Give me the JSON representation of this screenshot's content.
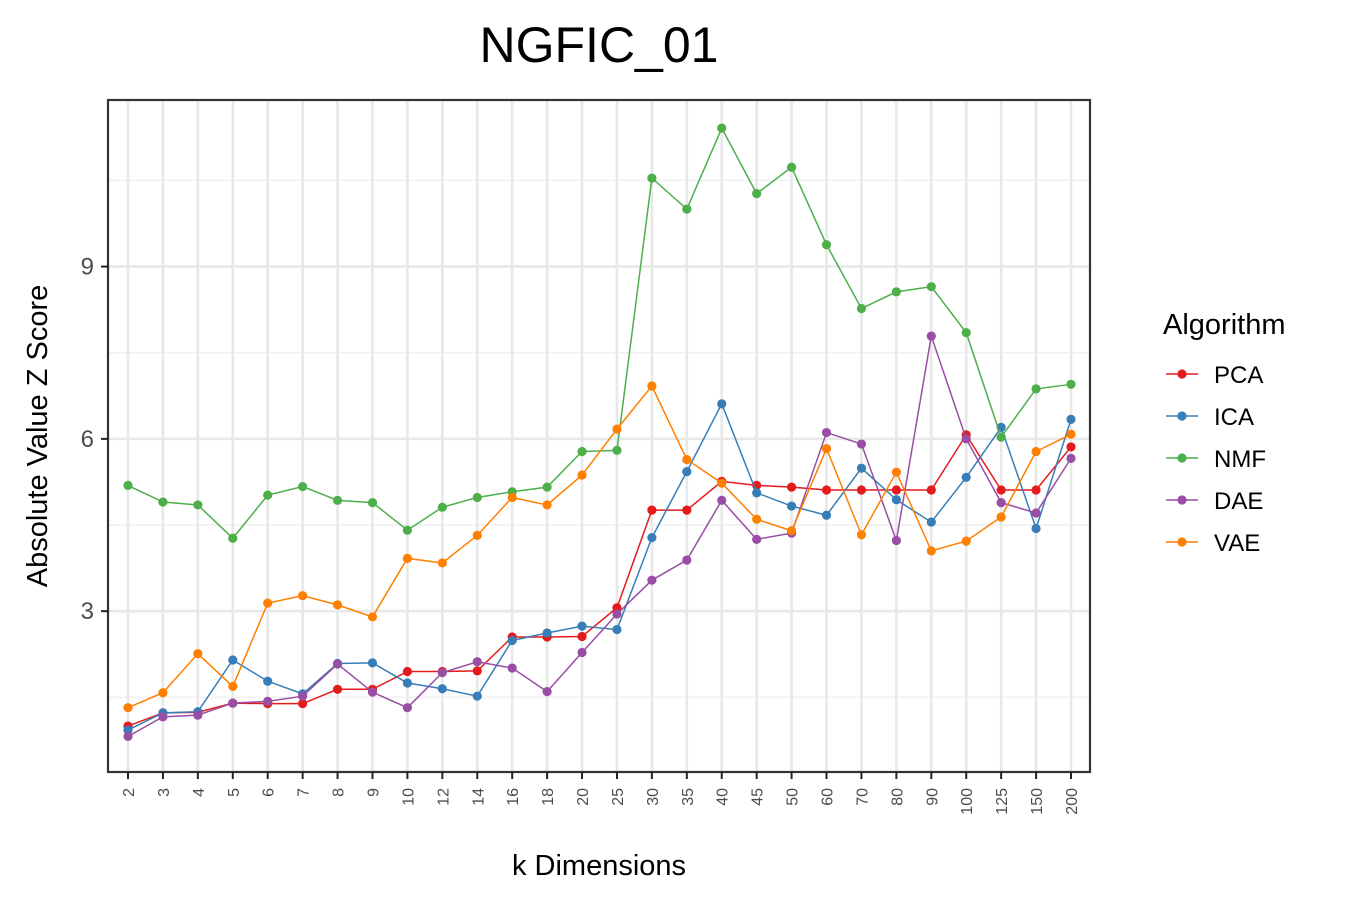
{
  "chart_data": {
    "type": "line",
    "title": "NGFIC_01",
    "xlabel": "k Dimensions",
    "ylabel": "Absolute Value Z Score",
    "categories": [
      "2",
      "3",
      "4",
      "5",
      "6",
      "7",
      "8",
      "9",
      "10",
      "12",
      "14",
      "16",
      "18",
      "20",
      "25",
      "30",
      "35",
      "40",
      "45",
      "50",
      "60",
      "70",
      "80",
      "90",
      "100",
      "125",
      "150",
      "200"
    ],
    "ylim": [
      0.2,
      11.9
    ],
    "yticks": [
      3,
      6,
      9
    ],
    "grid": true,
    "legend_title": "Algorithm",
    "legend_position": "right",
    "series": [
      {
        "name": "PCA",
        "color": "#e41a1c",
        "values": [
          1.0,
          1.23,
          1.24,
          1.4,
          1.39,
          1.39,
          1.64,
          1.64,
          1.95,
          1.95,
          1.96,
          2.55,
          2.55,
          2.56,
          3.06,
          4.76,
          4.76,
          5.26,
          5.19,
          5.16,
          5.11,
          5.11,
          5.11,
          5.11,
          6.07,
          5.11,
          5.11,
          5.86
        ]
      },
      {
        "name": "ICA",
        "color": "#377eb8",
        "values": [
          0.93,
          1.23,
          1.25,
          2.15,
          1.78,
          1.56,
          2.09,
          2.1,
          1.75,
          1.65,
          1.52,
          2.49,
          2.62,
          2.74,
          2.68,
          4.28,
          5.43,
          6.61,
          5.06,
          4.83,
          4.67,
          5.49,
          4.94,
          4.55,
          5.33,
          6.2,
          4.44,
          6.34
        ]
      },
      {
        "name": "NMF",
        "color": "#4daf4a",
        "values": [
          5.19,
          4.9,
          4.85,
          4.27,
          5.02,
          5.17,
          4.93,
          4.89,
          4.41,
          4.81,
          4.98,
          5.08,
          5.16,
          5.78,
          5.8,
          10.54,
          10.0,
          11.41,
          10.27,
          10.73,
          9.38,
          8.27,
          8.56,
          8.65,
          7.85,
          6.03,
          6.87,
          6.95
        ]
      },
      {
        "name": "DAE",
        "color": "#984ea3",
        "values": [
          0.82,
          1.16,
          1.19,
          1.4,
          1.43,
          1.52,
          2.08,
          1.59,
          1.32,
          1.93,
          2.12,
          2.01,
          1.6,
          2.28,
          2.95,
          3.54,
          3.89,
          4.93,
          4.25,
          4.36,
          6.11,
          5.91,
          4.23,
          7.79,
          6.0,
          4.89,
          4.71,
          5.66
        ]
      },
      {
        "name": "VAE",
        "color": "#ff7f00",
        "values": [
          1.32,
          1.58,
          2.26,
          1.69,
          3.14,
          3.27,
          3.11,
          2.9,
          3.92,
          3.84,
          4.32,
          4.98,
          4.85,
          5.37,
          6.17,
          6.92,
          5.64,
          5.23,
          4.6,
          4.4,
          5.83,
          4.33,
          5.42,
          4.05,
          4.22,
          4.64,
          5.78,
          6.08
        ]
      }
    ]
  },
  "colors": {
    "panel_border": "#333333",
    "grid": "#ebebeb",
    "background": "#ffffff"
  }
}
